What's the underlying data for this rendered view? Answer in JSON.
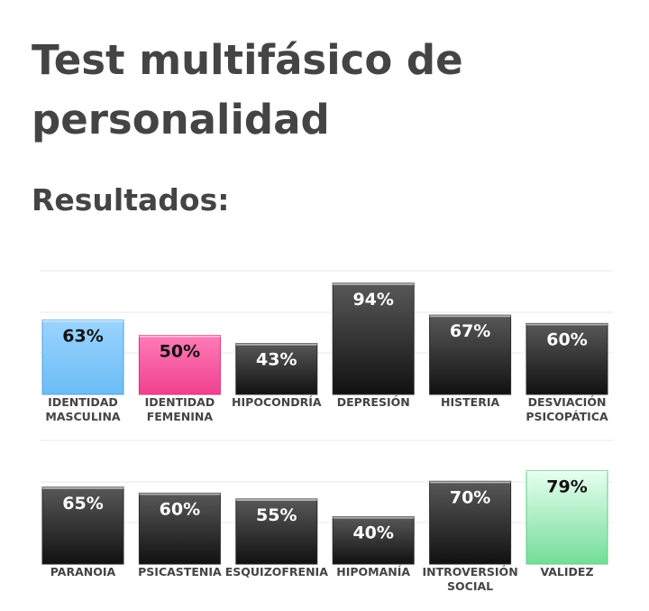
{
  "page": {
    "title": "Test multifásico de personalidad",
    "subtitle": "Resultados:"
  },
  "colors": {
    "dark": [
      "#585858",
      "#111111"
    ],
    "blue": [
      "#9bd4ff",
      "#6bbcf5"
    ],
    "pink": [
      "#ff7cb8",
      "#f0408e"
    ],
    "green": [
      "#e6fff0",
      "#73dd98"
    ],
    "grid": "#e9e9e9",
    "text": "#444444"
  },
  "chart_data": [
    {
      "type": "bar",
      "title": "",
      "xlabel": "",
      "ylabel": "",
      "ylim": [
        0,
        100
      ],
      "grid": true,
      "categories": [
        [
          "IDENTIDAD",
          "MASCULINA"
        ],
        [
          "IDENTIDAD",
          "FEMENINA"
        ],
        [
          "HIPOCONDRÍA"
        ],
        [
          "DEPRESIÓN"
        ],
        [
          "HISTERIA"
        ],
        [
          "DESVIACIÓN",
          "PSICOPÁTICA"
        ]
      ],
      "values": [
        63,
        50,
        43,
        94,
        67,
        60
      ],
      "labels": [
        "63%",
        "50%",
        "43%",
        "94%",
        "67%",
        "60%"
      ],
      "bar_colors": [
        "blue",
        "pink",
        "dark",
        "dark",
        "dark",
        "dark"
      ]
    },
    {
      "type": "bar",
      "title": "",
      "xlabel": "",
      "ylabel": "",
      "ylim": [
        0,
        100
      ],
      "grid": true,
      "categories": [
        [
          "PARANOIA"
        ],
        [
          "PSICASTENIA"
        ],
        [
          "ESQUIZOFRENIA"
        ],
        [
          "HIPOMANÍA"
        ],
        [
          "INTROVERSIÓN",
          "SOCIAL"
        ],
        [
          "VALIDEZ"
        ]
      ],
      "values": [
        65,
        60,
        55,
        40,
        70,
        79
      ],
      "labels": [
        "65%",
        "60%",
        "55%",
        "40%",
        "70%",
        "79%"
      ],
      "bar_colors": [
        "dark",
        "dark",
        "dark",
        "dark",
        "dark",
        "green"
      ]
    }
  ]
}
